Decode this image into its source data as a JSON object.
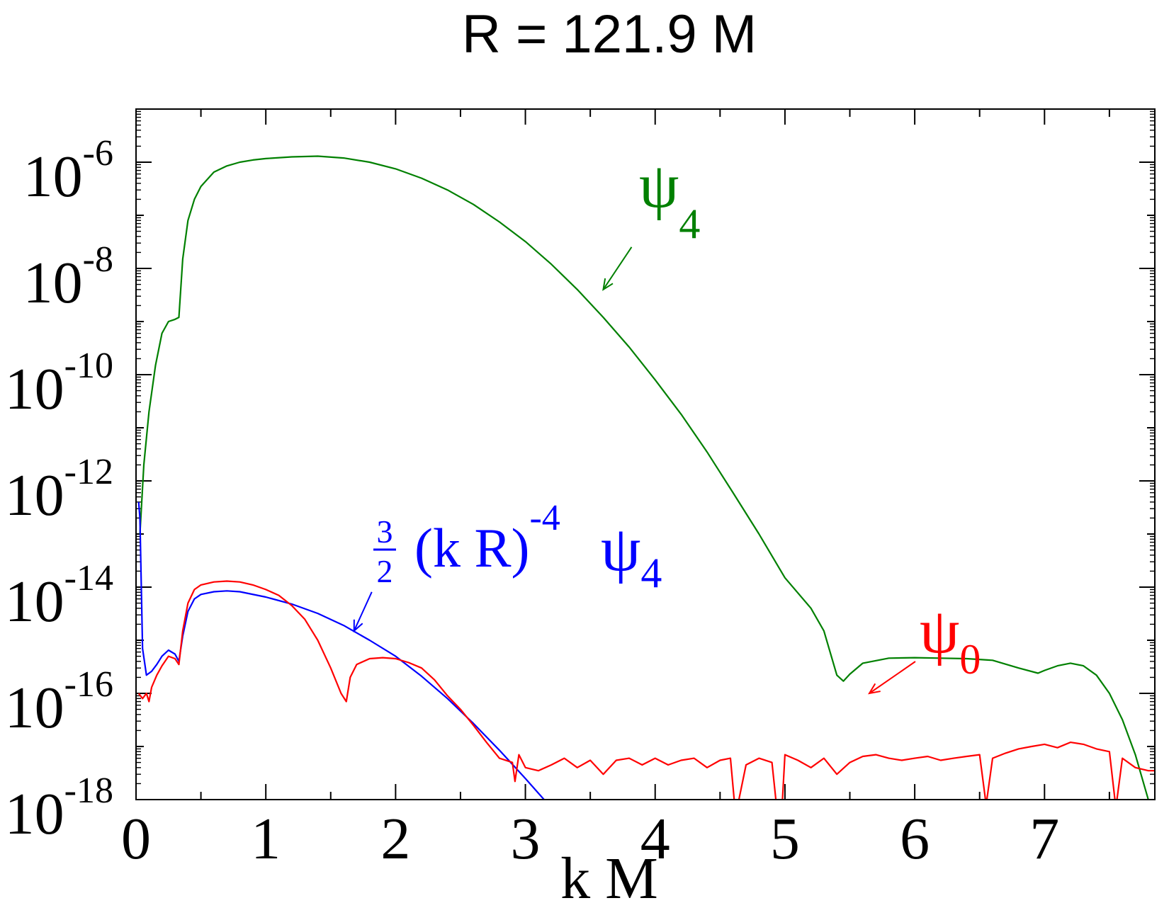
{
  "chart_data": {
    "type": "line",
    "title": "R = 121.9 M",
    "xlabel": "k M",
    "ylabel": "",
    "xlim": [
      0,
      7.85
    ],
    "ylim": [
      1e-18,
      1e-05
    ],
    "yscale": "log",
    "grid": false,
    "xticks": [
      "0",
      "1",
      "2",
      "3",
      "4",
      "5",
      "6",
      "7"
    ],
    "yticks": [
      {
        "base": "10",
        "exp": "-6",
        "value": 1e-06
      },
      {
        "base": "10",
        "exp": "-8",
        "value": 1e-08
      },
      {
        "base": "10",
        "exp": "-10",
        "value": 1e-10
      },
      {
        "base": "10",
        "exp": "-12",
        "value": 1e-12
      },
      {
        "base": "10",
        "exp": "-14",
        "value": 1e-14
      },
      {
        "base": "10",
        "exp": "-16",
        "value": 1e-16
      },
      {
        "base": "10",
        "exp": "-18",
        "value": 1e-18
      }
    ],
    "series": [
      {
        "name": "ψ4",
        "color": "#008000",
        "x": [
          0.03,
          0.06,
          0.1,
          0.15,
          0.2,
          0.25,
          0.3,
          0.33,
          0.36,
          0.4,
          0.45,
          0.5,
          0.6,
          0.7,
          0.8,
          0.9,
          1.0,
          1.2,
          1.4,
          1.6,
          1.8,
          2.0,
          2.2,
          2.4,
          2.6,
          2.8,
          3.0,
          3.2,
          3.4,
          3.6,
          3.8,
          4.0,
          4.2,
          4.4,
          4.6,
          4.8,
          5.0,
          5.2,
          5.3,
          5.4,
          5.45,
          5.5,
          5.6,
          5.8,
          6.0,
          6.2,
          6.4,
          6.6,
          6.8,
          6.95,
          7.0,
          7.1,
          7.2,
          7.3,
          7.4,
          7.5,
          7.6,
          7.7,
          7.8,
          7.85
        ],
        "y": [
          1e-13,
          2e-12,
          2e-11,
          1.5e-10,
          6e-10,
          1e-09,
          1.1e-09,
          1.2e-09,
          1.5e-08,
          8e-08,
          2e-07,
          3.5e-07,
          6.5e-07,
          8.5e-07,
          1e-06,
          1.1e-06,
          1.17e-06,
          1.26e-06,
          1.3e-06,
          1.2e-06,
          1e-06,
          7.5e-07,
          5e-07,
          3e-07,
          1.6e-07,
          7.5e-08,
          3.2e-08,
          1.2e-08,
          4e-09,
          1.2e-09,
          3.3e-10,
          8e-11,
          1.8e-11,
          3.5e-12,
          6e-13,
          1e-13,
          1.5e-14,
          4e-15,
          1.5e-15,
          2.2e-16,
          1.7e-16,
          2.3e-16,
          3.7e-16,
          4.6e-16,
          4.7e-16,
          4.6e-16,
          4.5e-16,
          4.2e-16,
          3e-16,
          2.4e-16,
          2.7e-16,
          3.3e-16,
          3.7e-16,
          3.3e-16,
          2.2e-16,
          1e-16,
          3.2e-17,
          7e-18,
          1e-18,
          5e-19
        ]
      },
      {
        "name": "3/2 (k R)^-4 ψ4",
        "color": "#0000ff",
        "x": [
          0.02,
          0.03,
          0.05,
          0.08,
          0.12,
          0.16,
          0.2,
          0.25,
          0.3,
          0.33,
          0.36,
          0.4,
          0.45,
          0.5,
          0.6,
          0.7,
          0.8,
          1.0,
          1.2,
          1.4,
          1.6,
          1.8,
          2.0,
          2.2,
          2.4,
          2.6,
          2.8,
          3.0,
          3.2,
          3.22
        ],
        "y": [
          4e-13,
          2e-13,
          7e-16,
          2.2e-16,
          2.6e-16,
          3.5e-16,
          5e-16,
          6.5e-16,
          5.5e-16,
          4e-16,
          1.2e-15,
          3.5e-15,
          6e-15,
          7.3e-15,
          8.2e-15,
          8.5e-15,
          8.2e-15,
          6.5e-15,
          4.8e-15,
          3.2e-15,
          1.9e-15,
          1e-15,
          5e-16,
          2.1e-16,
          8e-17,
          2.7e-17,
          8.5e-18,
          2.5e-18,
          7e-19,
          6e-19
        ]
      },
      {
        "name": "ψ0",
        "color": "#ff0000",
        "x": [
          0.02,
          0.05,
          0.08,
          0.1,
          0.12,
          0.16,
          0.2,
          0.25,
          0.3,
          0.33,
          0.36,
          0.4,
          0.45,
          0.5,
          0.6,
          0.7,
          0.8,
          0.9,
          1.0,
          1.1,
          1.2,
          1.3,
          1.4,
          1.5,
          1.58,
          1.62,
          1.65,
          1.7,
          1.8,
          1.9,
          2.0,
          2.1,
          2.2,
          2.3,
          2.4,
          2.5,
          2.6,
          2.7,
          2.8,
          2.9,
          2.92,
          2.95,
          3.0,
          3.1,
          3.2,
          3.3,
          3.4,
          3.5,
          3.6,
          3.7,
          3.8,
          3.9,
          4.0,
          4.1,
          4.2,
          4.3,
          4.4,
          4.5,
          4.58,
          4.62,
          4.7,
          4.8,
          4.9,
          4.93,
          4.96,
          5.0,
          5.1,
          5.2,
          5.3,
          5.4,
          5.5,
          5.6,
          5.7,
          5.8,
          5.9,
          6.0,
          6.1,
          6.2,
          6.3,
          6.4,
          6.5,
          6.55,
          6.6,
          6.7,
          6.8,
          6.9,
          7.0,
          7.1,
          7.2,
          7.3,
          7.4,
          7.5,
          7.55,
          7.6,
          7.7,
          7.8,
          7.85
        ],
        "y": [
          1e-16,
          8e-17,
          1e-16,
          7e-17,
          1.3e-16,
          2.2e-16,
          3.3e-16,
          5e-16,
          4.5e-16,
          3.5e-16,
          1.5e-15,
          5e-15,
          9e-15,
          1.1e-14,
          1.25e-14,
          1.3e-14,
          1.25e-14,
          1.1e-14,
          9e-15,
          7e-15,
          4.5e-15,
          2.5e-15,
          1e-15,
          3e-16,
          1e-16,
          7e-17,
          2e-16,
          3.5e-16,
          4.5e-16,
          4.7e-16,
          4.5e-16,
          3.8e-16,
          3e-16,
          1.8e-16,
          9e-17,
          5e-17,
          2.5e-17,
          1.2e-17,
          6e-18,
          5e-18,
          2.2e-18,
          7e-18,
          4e-18,
          3.5e-18,
          4.5e-18,
          6e-18,
          4e-18,
          5.5e-18,
          3e-18,
          5.5e-18,
          6e-18,
          4.5e-18,
          6e-18,
          4.5e-18,
          5.5e-18,
          6e-18,
          4e-18,
          5.5e-18,
          6e-18,
          5e-19,
          4.5e-18,
          6e-18,
          5e-18,
          1e-18,
          1.2e-19,
          7e-18,
          5.5e-18,
          4e-18,
          6e-18,
          3e-18,
          5e-18,
          6.5e-18,
          7e-18,
          6e-18,
          5.5e-18,
          6e-18,
          6.5e-18,
          5.5e-18,
          6e-18,
          6.5e-18,
          7e-18,
          8e-19,
          6e-18,
          7.5e-18,
          9e-18,
          1e-17,
          1.1e-17,
          9.5e-18,
          1.2e-17,
          1.1e-17,
          9e-18,
          8e-18,
          7e-19,
          6e-18,
          4e-18,
          3.5e-18,
          3.5e-18
        ]
      }
    ],
    "labels": {
      "psi4": {
        "main": "ψ",
        "sub": "4",
        "color": "#008000"
      },
      "psi0": {
        "main": "ψ",
        "sub": "0",
        "color": "#ff0000"
      },
      "blue": {
        "num": "3",
        "den": "2",
        "paren": "(k R)",
        "exp": "-4",
        "main": "ψ",
        "sub": "4",
        "color": "#0000ff"
      }
    },
    "annotations": [
      {
        "target": "ψ4",
        "arrow_color": "#008000",
        "x": 3.6,
        "y": 4e-09
      },
      {
        "target": "3/2 (k R)^-4 ψ4",
        "arrow_color": "#0000ff",
        "x": 1.68,
        "y": 1.5e-15
      },
      {
        "target": "ψ0",
        "arrow_color": "#ff0000",
        "x": 5.65,
        "y": 1e-16
      }
    ]
  }
}
